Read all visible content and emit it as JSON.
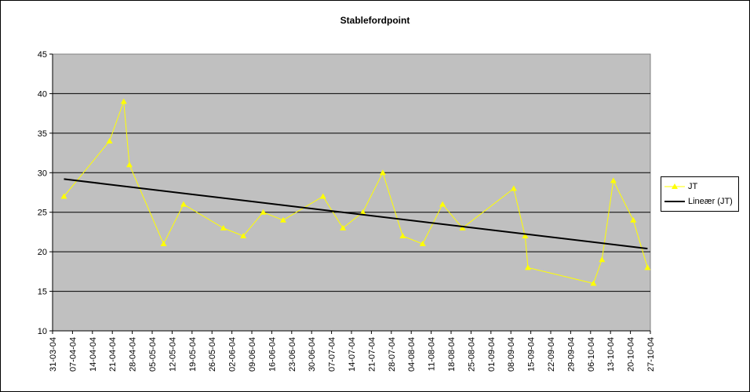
{
  "chart_data": {
    "type": "line",
    "title": "Stablefordpoint",
    "xlabel": "",
    "ylabel": "",
    "ylim": [
      10,
      45
    ],
    "yticks": [
      10,
      15,
      20,
      25,
      30,
      35,
      40,
      45
    ],
    "xlim": [
      "2004-03-31",
      "2004-10-27"
    ],
    "xtick_labels": [
      "31-03-04",
      "07-04-04",
      "14-04-04",
      "21-04-04",
      "28-04-04",
      "05-05-04",
      "12-05-04",
      "19-05-04",
      "26-05-04",
      "02-06-04",
      "09-06-04",
      "16-06-04",
      "23-06-04",
      "30-06-04",
      "07-07-04",
      "14-07-04",
      "21-07-04",
      "28-07-04",
      "04-08-04",
      "11-08-04",
      "18-08-04",
      "25-08-04",
      "01-09-04",
      "08-09-04",
      "15-09-04",
      "22-09-04",
      "29-09-04",
      "06-10-04",
      "13-10-04",
      "20-10-04",
      "27-10-04"
    ],
    "grid": "horizontal",
    "plot_background": "#c0c0c0",
    "legend_position": "right",
    "series": [
      {
        "name": "JT",
        "color": "#ffff00",
        "marker": "triangle",
        "points": [
          {
            "x": "2004-04-04",
            "y": 27
          },
          {
            "x": "2004-04-20",
            "y": 34
          },
          {
            "x": "2004-04-25",
            "y": 39
          },
          {
            "x": "2004-04-27",
            "y": 31
          },
          {
            "x": "2004-05-09",
            "y": 21
          },
          {
            "x": "2004-05-16",
            "y": 26
          },
          {
            "x": "2004-05-30",
            "y": 23
          },
          {
            "x": "2004-06-06",
            "y": 22
          },
          {
            "x": "2004-06-13",
            "y": 25
          },
          {
            "x": "2004-06-20",
            "y": 24
          },
          {
            "x": "2004-07-04",
            "y": 27
          },
          {
            "x": "2004-07-11",
            "y": 23
          },
          {
            "x": "2004-07-18",
            "y": 25
          },
          {
            "x": "2004-07-25",
            "y": 30
          },
          {
            "x": "2004-08-01",
            "y": 22
          },
          {
            "x": "2004-08-08",
            "y": 21
          },
          {
            "x": "2004-08-15",
            "y": 26
          },
          {
            "x": "2004-08-22",
            "y": 23
          },
          {
            "x": "2004-09-09",
            "y": 28
          },
          {
            "x": "2004-09-13",
            "y": 22
          },
          {
            "x": "2004-09-14",
            "y": 18
          },
          {
            "x": "2004-10-07",
            "y": 16
          },
          {
            "x": "2004-10-10",
            "y": 19
          },
          {
            "x": "2004-10-14",
            "y": 29
          },
          {
            "x": "2004-10-21",
            "y": 24
          },
          {
            "x": "2004-10-26",
            "y": 18
          }
        ]
      },
      {
        "name": "Lineær (JT)",
        "color": "#000000",
        "marker": "none",
        "points": [
          {
            "x": "2004-04-04",
            "y": 29.2
          },
          {
            "x": "2004-10-26",
            "y": 20.4
          }
        ]
      }
    ]
  }
}
